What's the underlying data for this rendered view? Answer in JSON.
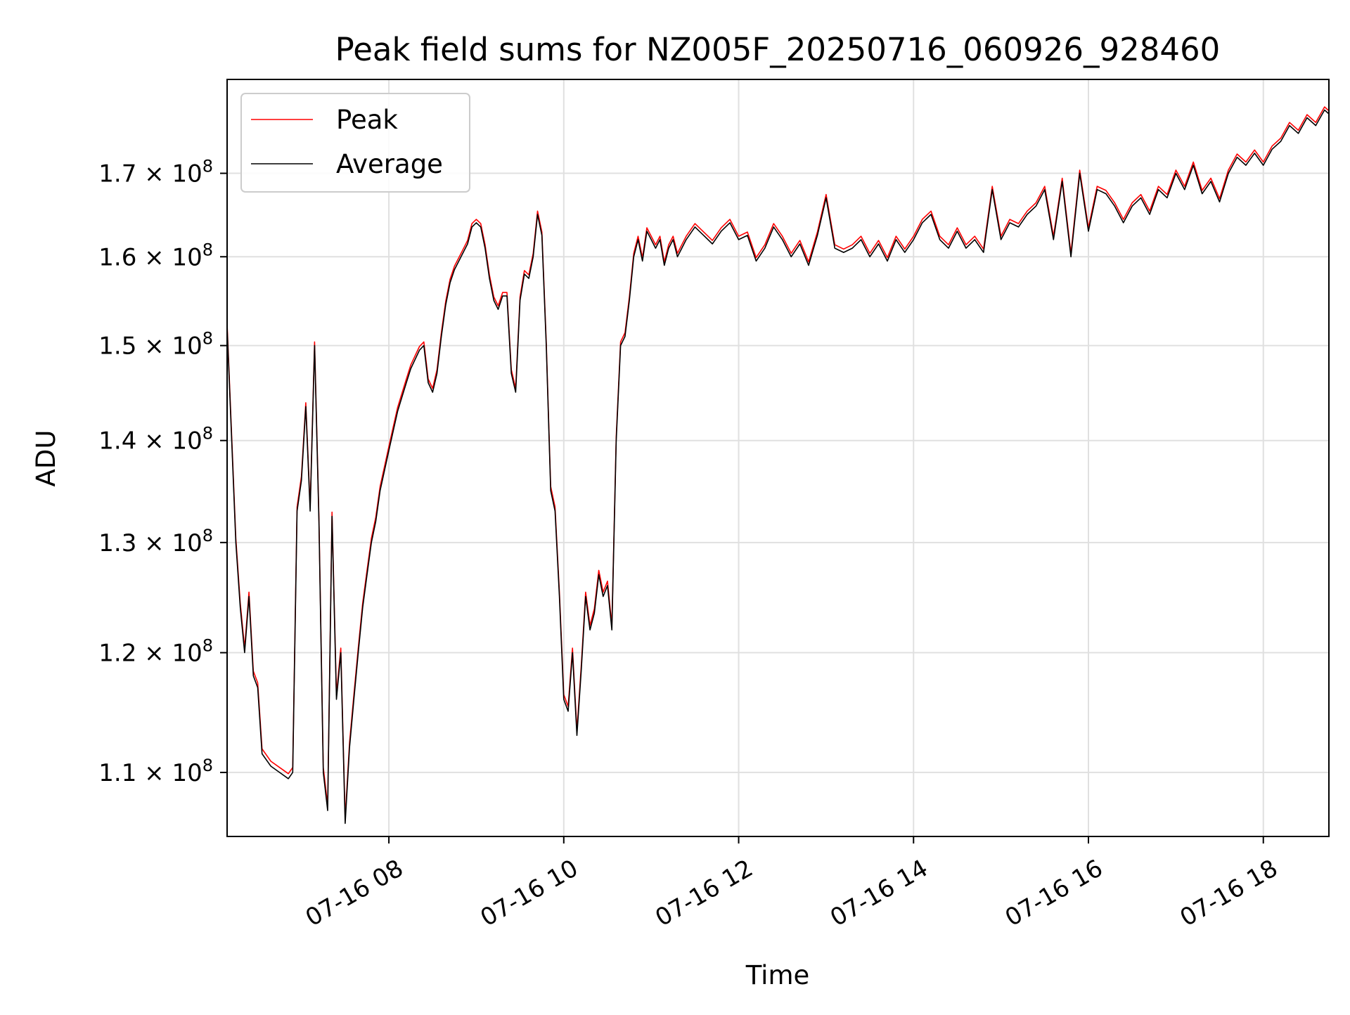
{
  "chart_data": {
    "type": "line",
    "title": "Peak field sums for NZ005F_20250716_060926_928460",
    "xlabel": "Time",
    "ylabel": "ADU",
    "y_scale": "log",
    "ylim": [
      105000000,
      182000000
    ],
    "xlim": [
      "2025-07-16 06:09",
      "2025-07-16 18:45"
    ],
    "grid": true,
    "legend": "top-left",
    "x_ticks": [
      {
        "value": "2025-07-16 08:00",
        "label": "07-16 08"
      },
      {
        "value": "2025-07-16 10:00",
        "label": "07-16 10"
      },
      {
        "value": "2025-07-16 12:00",
        "label": "07-16 12"
      },
      {
        "value": "2025-07-16 14:00",
        "label": "07-16 14"
      },
      {
        "value": "2025-07-16 16:00",
        "label": "07-16 16"
      },
      {
        "value": "2025-07-16 18:00",
        "label": "07-16 18"
      }
    ],
    "y_ticks": [
      {
        "value": 110000000,
        "mantissa": "1.1",
        "exponent": "8"
      },
      {
        "value": 120000000,
        "mantissa": "1.2",
        "exponent": "8"
      },
      {
        "value": 130000000,
        "mantissa": "1.3",
        "exponent": "8"
      },
      {
        "value": 140000000,
        "mantissa": "1.4",
        "exponent": "8"
      },
      {
        "value": 150000000,
        "mantissa": "1.5",
        "exponent": "8"
      },
      {
        "value": 160000000,
        "mantissa": "1.6",
        "exponent": "8"
      },
      {
        "value": 170000000,
        "mantissa": "1.7",
        "exponent": "8"
      }
    ],
    "times_sign": "×",
    "tick_base": "10",
    "series": [
      {
        "name": "Peak",
        "color": "#ff0000"
      },
      {
        "name": "Average",
        "color": "#000000"
      }
    ],
    "x": [
      "2025-07-16 06:09",
      "2025-07-16 06:15",
      "2025-07-16 06:18",
      "2025-07-16 06:21",
      "2025-07-16 06:24",
      "2025-07-16 06:27",
      "2025-07-16 06:30",
      "2025-07-16 06:33",
      "2025-07-16 06:39",
      "2025-07-16 06:45",
      "2025-07-16 06:51",
      "2025-07-16 06:54",
      "2025-07-16 06:57",
      "2025-07-16 07:00",
      "2025-07-16 07:03",
      "2025-07-16 07:06",
      "2025-07-16 07:09",
      "2025-07-16 07:12",
      "2025-07-16 07:15",
      "2025-07-16 07:18",
      "2025-07-16 07:21",
      "2025-07-16 07:24",
      "2025-07-16 07:27",
      "2025-07-16 07:30",
      "2025-07-16 07:33",
      "2025-07-16 07:36",
      "2025-07-16 07:39",
      "2025-07-16 07:42",
      "2025-07-16 07:45",
      "2025-07-16 07:48",
      "2025-07-16 07:51",
      "2025-07-16 07:54",
      "2025-07-16 07:57",
      "2025-07-16 08:00",
      "2025-07-16 08:03",
      "2025-07-16 08:06",
      "2025-07-16 08:09",
      "2025-07-16 08:12",
      "2025-07-16 08:15",
      "2025-07-16 08:18",
      "2025-07-16 08:21",
      "2025-07-16 08:24",
      "2025-07-16 08:27",
      "2025-07-16 08:30",
      "2025-07-16 08:33",
      "2025-07-16 08:36",
      "2025-07-16 08:39",
      "2025-07-16 08:42",
      "2025-07-16 08:45",
      "2025-07-16 08:48",
      "2025-07-16 08:51",
      "2025-07-16 08:54",
      "2025-07-16 08:57",
      "2025-07-16 09:00",
      "2025-07-16 09:03",
      "2025-07-16 09:06",
      "2025-07-16 09:09",
      "2025-07-16 09:12",
      "2025-07-16 09:15",
      "2025-07-16 09:18",
      "2025-07-16 09:21",
      "2025-07-16 09:24",
      "2025-07-16 09:27",
      "2025-07-16 09:30",
      "2025-07-16 09:33",
      "2025-07-16 09:36",
      "2025-07-16 09:39",
      "2025-07-16 09:42",
      "2025-07-16 09:45",
      "2025-07-16 09:48",
      "2025-07-16 09:51",
      "2025-07-16 09:54",
      "2025-07-16 09:57",
      "2025-07-16 10:00",
      "2025-07-16 10:03",
      "2025-07-16 10:06",
      "2025-07-16 10:09",
      "2025-07-16 10:12",
      "2025-07-16 10:15",
      "2025-07-16 10:18",
      "2025-07-16 10:21",
      "2025-07-16 10:24",
      "2025-07-16 10:27",
      "2025-07-16 10:30",
      "2025-07-16 10:33",
      "2025-07-16 10:36",
      "2025-07-16 10:39",
      "2025-07-16 10:42",
      "2025-07-16 10:45",
      "2025-07-16 10:48",
      "2025-07-16 10:51",
      "2025-07-16 10:54",
      "2025-07-16 10:57",
      "2025-07-16 11:00",
      "2025-07-16 11:03",
      "2025-07-16 11:06",
      "2025-07-16 11:09",
      "2025-07-16 11:12",
      "2025-07-16 11:15",
      "2025-07-16 11:18",
      "2025-07-16 11:21",
      "2025-07-16 11:24",
      "2025-07-16 11:30",
      "2025-07-16 11:36",
      "2025-07-16 11:42",
      "2025-07-16 11:48",
      "2025-07-16 11:54",
      "2025-07-16 12:00",
      "2025-07-16 12:06",
      "2025-07-16 12:12",
      "2025-07-16 12:18",
      "2025-07-16 12:24",
      "2025-07-16 12:30",
      "2025-07-16 12:36",
      "2025-07-16 12:42",
      "2025-07-16 12:48",
      "2025-07-16 12:54",
      "2025-07-16 13:00",
      "2025-07-16 13:06",
      "2025-07-16 13:12",
      "2025-07-16 13:18",
      "2025-07-16 13:24",
      "2025-07-16 13:30",
      "2025-07-16 13:36",
      "2025-07-16 13:42",
      "2025-07-16 13:48",
      "2025-07-16 13:54",
      "2025-07-16 14:00",
      "2025-07-16 14:06",
      "2025-07-16 14:12",
      "2025-07-16 14:18",
      "2025-07-16 14:24",
      "2025-07-16 14:30",
      "2025-07-16 14:36",
      "2025-07-16 14:42",
      "2025-07-16 14:48",
      "2025-07-16 14:54",
      "2025-07-16 15:00",
      "2025-07-16 15:06",
      "2025-07-16 15:12",
      "2025-07-16 15:18",
      "2025-07-16 15:24",
      "2025-07-16 15:30",
      "2025-07-16 15:36",
      "2025-07-16 15:42",
      "2025-07-16 15:48",
      "2025-07-16 15:54",
      "2025-07-16 16:00",
      "2025-07-16 16:06",
      "2025-07-16 16:12",
      "2025-07-16 16:18",
      "2025-07-16 16:24",
      "2025-07-16 16:30",
      "2025-07-16 16:36",
      "2025-07-16 16:42",
      "2025-07-16 16:48",
      "2025-07-16 16:54",
      "2025-07-16 17:00",
      "2025-07-16 17:06",
      "2025-07-16 17:12",
      "2025-07-16 17:18",
      "2025-07-16 17:24",
      "2025-07-16 17:30",
      "2025-07-16 17:36",
      "2025-07-16 17:42",
      "2025-07-16 17:48",
      "2025-07-16 17:54",
      "2025-07-16 18:00",
      "2025-07-16 18:06",
      "2025-07-16 18:12",
      "2025-07-16 18:18",
      "2025-07-16 18:24",
      "2025-07-16 18:30",
      "2025-07-16 18:36",
      "2025-07-16 18:42",
      "2025-07-16 18:45"
    ],
    "average": [
      152000000,
      130000000,
      124000000,
      120000000,
      125000000,
      118000000,
      117000000,
      111500000,
      110500000,
      110000000,
      109500000,
      110000000,
      133000000,
      136000000,
      143500000,
      133000000,
      150000000,
      132000000,
      110000000,
      107000000,
      132500000,
      116000000,
      120000000,
      106000000,
      112000000,
      116000000,
      120000000,
      124000000,
      127000000,
      130000000,
      132000000,
      135000000,
      137000000,
      139000000,
      141000000,
      143000000,
      144500000,
      146000000,
      147500000,
      148500000,
      149500000,
      150000000,
      146000000,
      145000000,
      147000000,
      151000000,
      154500000,
      157000000,
      158500000,
      159500000,
      160500000,
      161500000,
      163500000,
      164000000,
      163500000,
      161000000,
      157500000,
      155000000,
      154000000,
      155500000,
      155500000,
      147000000,
      145000000,
      155000000,
      158000000,
      157500000,
      160000000,
      165000000,
      162500000,
      150000000,
      135000000,
      133000000,
      125000000,
      116000000,
      115000000,
      120000000,
      113000000,
      118500000,
      125000000,
      122000000,
      123500000,
      127000000,
      125000000,
      126000000,
      122000000,
      140000000,
      150000000,
      151000000,
      155000000,
      160000000,
      162000000,
      159500000,
      163000000,
      162000000,
      161000000,
      162000000,
      159000000,
      161000000,
      162000000,
      160000000,
      161000000,
      162000000,
      163500000,
      162500000,
      161500000,
      163000000,
      164000000,
      162000000,
      162500000,
      159500000,
      161000000,
      163500000,
      162000000,
      160000000,
      161500000,
      159000000,
      162500000,
      167000000,
      161000000,
      160500000,
      161000000,
      162000000,
      160000000,
      161500000,
      159500000,
      162000000,
      160500000,
      162000000,
      164000000,
      165000000,
      162000000,
      161000000,
      163000000,
      161000000,
      162000000,
      160500000,
      168000000,
      162000000,
      164000000,
      163500000,
      165000000,
      166000000,
      168000000,
      162000000,
      169000000,
      160000000,
      170000000,
      163000000,
      168000000,
      167500000,
      166000000,
      164000000,
      166000000,
      167000000,
      165000000,
      168000000,
      167000000,
      170000000,
      168000000,
      171000000,
      167500000,
      169000000,
      166500000,
      170000000,
      172000000,
      171000000,
      172500000,
      171000000,
      173000000,
      174000000,
      176000000,
      175000000,
      177000000,
      176000000,
      178000000,
      177500000
    ],
    "peak_offset": 400000
  }
}
